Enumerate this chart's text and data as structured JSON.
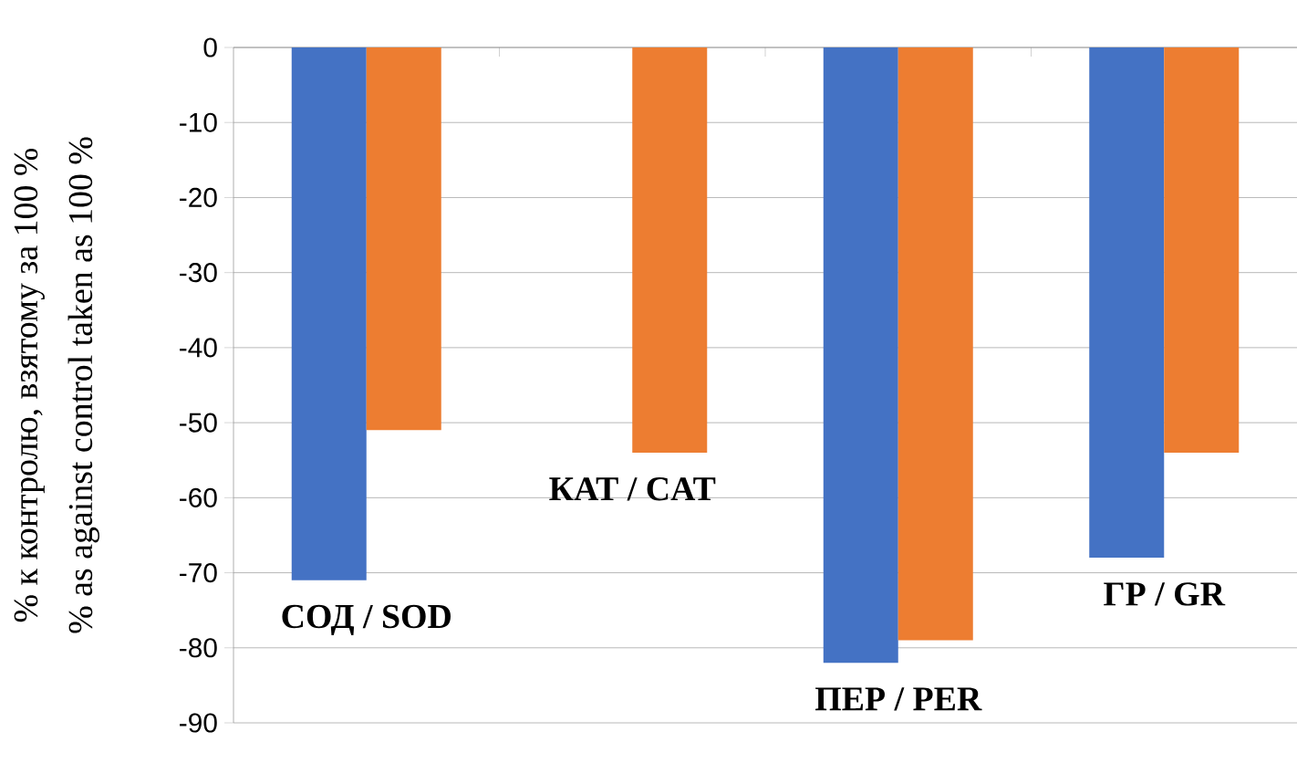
{
  "chart_data": {
    "type": "bar",
    "ylabel": "% к контролю, взятому за 100 %",
    "annotations": [
      "% as against control taken as 100 %"
    ],
    "categories": [
      "СОД / SOD",
      "КАТ / CAT",
      "ПЕР / PER",
      "ГР / GR"
    ],
    "series": [
      {
        "color": "#4472c4",
        "values": [
          -71,
          null,
          -82,
          -68
        ]
      },
      {
        "color": "#ed7d31",
        "values": [
          -51,
          -54,
          -79,
          -54
        ]
      }
    ],
    "ylim": [
      -90,
      0
    ],
    "yticks": [
      -90,
      -80,
      -70,
      -60,
      -50,
      -40,
      -30,
      -20,
      -10,
      0
    ],
    "grid": "y"
  }
}
